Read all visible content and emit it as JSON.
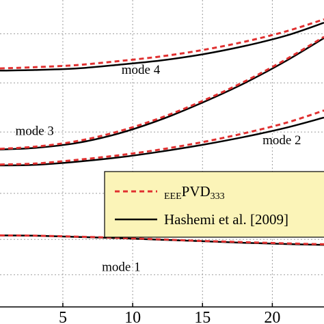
{
  "chart_data": {
    "type": "line",
    "xlim": [
      0.5,
      23.7
    ],
    "ylim": [
      0,
      1
    ],
    "grid": true,
    "x_ticks": [
      5,
      10,
      15,
      20
    ],
    "y_gridlines": [
      0.105,
      0.22,
      0.37,
      0.57,
      0.73,
      0.89
    ],
    "legend": {
      "placement": "right",
      "background": "#fbf4b8",
      "entries": [
        {
          "key": "pvd",
          "prefix": "EEE",
          "main": "PVD",
          "suffix": "333",
          "color": "#e03030",
          "style": "dashed"
        },
        {
          "key": "hashemi",
          "text": "Hashemi et al. [2009]",
          "color": "#000000",
          "style": "solid"
        }
      ]
    },
    "annotations": [
      {
        "text": "mode 4",
        "x": 9.2,
        "y": 0.76
      },
      {
        "text": "mode 3",
        "x": 1.6,
        "y": 0.56
      },
      {
        "text": "mode 2",
        "x": 19.3,
        "y": 0.53
      },
      {
        "text": "mode 1",
        "x": 7.8,
        "y": 0.117
      }
    ],
    "series": [
      {
        "mode": "mode 4",
        "kind": "pvd",
        "x": [
          0.5,
          3,
          6,
          9,
          12,
          15,
          18,
          21,
          23.7
        ],
        "y": [
          0.777,
          0.781,
          0.788,
          0.801,
          0.816,
          0.837,
          0.864,
          0.898,
          0.937
        ]
      },
      {
        "mode": "mode 4",
        "kind": "hashemi",
        "x": [
          0.5,
          3,
          6,
          9,
          12,
          15,
          18,
          21,
          23.7
        ],
        "y": [
          0.77,
          0.772,
          0.777,
          0.789,
          0.803,
          0.823,
          0.85,
          0.884,
          0.926
        ]
      },
      {
        "mode": "mode 3",
        "kind": "pvd",
        "x": [
          0.5,
          3,
          6,
          9,
          12,
          15,
          18,
          21,
          23.7
        ],
        "y": [
          0.515,
          0.522,
          0.54,
          0.572,
          0.616,
          0.671,
          0.734,
          0.807,
          0.88
        ]
      },
      {
        "mode": "mode 3",
        "kind": "hashemi",
        "x": [
          0.5,
          3,
          6,
          9,
          12,
          15,
          18,
          21,
          23.7
        ],
        "y": [
          0.513,
          0.518,
          0.534,
          0.565,
          0.61,
          0.666,
          0.729,
          0.802,
          0.876
        ]
      },
      {
        "mode": "mode 2",
        "kind": "pvd",
        "x": [
          0.5,
          3,
          6,
          9,
          12,
          15,
          18,
          21,
          23.7
        ],
        "y": [
          0.464,
          0.467,
          0.479,
          0.494,
          0.513,
          0.537,
          0.566,
          0.6,
          0.64
        ]
      },
      {
        "mode": "mode 2",
        "kind": "hashemi",
        "x": [
          0.5,
          3,
          6,
          9,
          12,
          15,
          18,
          21,
          23.7
        ],
        "y": [
          0.461,
          0.463,
          0.473,
          0.487,
          0.506,
          0.528,
          0.554,
          0.584,
          0.617
        ]
      },
      {
        "mode": "mode 1",
        "kind": "pvd",
        "x": [
          0.5,
          3,
          6,
          9,
          12,
          15,
          18,
          21,
          23.7
        ],
        "y": [
          0.233,
          0.232,
          0.229,
          0.225,
          0.22,
          0.215,
          0.211,
          0.207,
          0.204
        ]
      },
      {
        "mode": "mode 1",
        "kind": "hashemi",
        "x": [
          0.5,
          3,
          6,
          9,
          12,
          15,
          18,
          21,
          23.7
        ],
        "y": [
          0.233,
          0.232,
          0.228,
          0.224,
          0.219,
          0.214,
          0.209,
          0.205,
          0.202
        ]
      }
    ]
  }
}
